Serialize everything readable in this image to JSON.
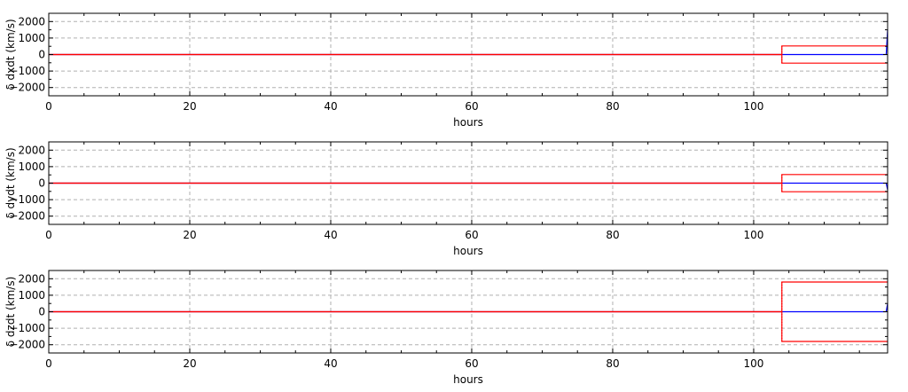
{
  "colors": {
    "grid": "#b0b0b0",
    "sigma": "#ff0000",
    "delta": "#0000ff",
    "frame": "#000000"
  },
  "chart_data": [
    {
      "type": "line",
      "xlabel": "hours",
      "ylabel": "δ dxdt (km/s)",
      "xlim": [
        0,
        119
      ],
      "ylim": [
        -2500,
        2500
      ],
      "xticks": [
        0,
        20,
        40,
        60,
        80,
        100
      ],
      "yticks": [
        -2000,
        -1000,
        0,
        1000,
        2000
      ],
      "xtick_labels": [
        "0",
        "20",
        "40",
        "60",
        "80",
        "100"
      ],
      "ytick_labels": [
        "−2000",
        "−1000",
        "0",
        "1000",
        "2000"
      ],
      "grid": true,
      "series": [
        {
          "kind": "delta",
          "points": [
            [
              0,
              0
            ],
            [
              104,
              0
            ],
            [
              118.8,
              0
            ],
            [
              119,
              1500
            ]
          ]
        },
        {
          "kind": "sigma-upper",
          "points": [
            [
              0,
              0
            ],
            [
              104,
              0
            ],
            [
              104,
              520
            ],
            [
              119,
              520
            ]
          ]
        },
        {
          "kind": "sigma-lower",
          "points": [
            [
              0,
              0
            ],
            [
              104,
              0
            ],
            [
              104,
              -520
            ],
            [
              119,
              -520
            ]
          ]
        }
      ]
    },
    {
      "type": "line",
      "xlabel": "hours",
      "ylabel": "δ dydt (km/s)",
      "xlim": [
        0,
        119
      ],
      "ylim": [
        -2500,
        2500
      ],
      "xticks": [
        0,
        20,
        40,
        60,
        80,
        100
      ],
      "yticks": [
        -2000,
        -1000,
        0,
        1000,
        2000
      ],
      "xtick_labels": [
        "0",
        "20",
        "40",
        "60",
        "80",
        "100"
      ],
      "ytick_labels": [
        "−2000",
        "−1000",
        "0",
        "1000",
        "2000"
      ],
      "grid": true,
      "series": [
        {
          "kind": "delta",
          "points": [
            [
              0,
              0
            ],
            [
              104,
              0
            ],
            [
              118.8,
              0
            ],
            [
              119,
              -400
            ]
          ]
        },
        {
          "kind": "sigma-upper",
          "points": [
            [
              0,
              0
            ],
            [
              104,
              0
            ],
            [
              104,
              520
            ],
            [
              119,
              520
            ]
          ]
        },
        {
          "kind": "sigma-lower",
          "points": [
            [
              0,
              0
            ],
            [
              104,
              0
            ],
            [
              104,
              -520
            ],
            [
              119,
              -520
            ]
          ]
        }
      ]
    },
    {
      "type": "line",
      "xlabel": "hours",
      "ylabel": "δ dzdt (km/s)",
      "xlim": [
        0,
        119
      ],
      "ylim": [
        -2500,
        2500
      ],
      "xticks": [
        0,
        20,
        40,
        60,
        80,
        100
      ],
      "yticks": [
        -2000,
        -1000,
        0,
        1000,
        2000
      ],
      "xtick_labels": [
        "0",
        "20",
        "40",
        "60",
        "80",
        "100"
      ],
      "ytick_labels": [
        "−2000",
        "−1000",
        "0",
        "1000",
        "2000"
      ],
      "grid": true,
      "series": [
        {
          "kind": "delta",
          "points": [
            [
              0,
              0
            ],
            [
              104,
              0
            ],
            [
              118.8,
              0
            ],
            [
              119,
              500
            ]
          ]
        },
        {
          "kind": "sigma-upper",
          "points": [
            [
              0,
              0
            ],
            [
              104,
              0
            ],
            [
              104,
              1800
            ],
            [
              119,
              1800
            ]
          ]
        },
        {
          "kind": "sigma-lower",
          "points": [
            [
              0,
              0
            ],
            [
              104,
              0
            ],
            [
              104,
              -1800
            ],
            [
              119,
              -1800
            ]
          ]
        }
      ]
    }
  ]
}
